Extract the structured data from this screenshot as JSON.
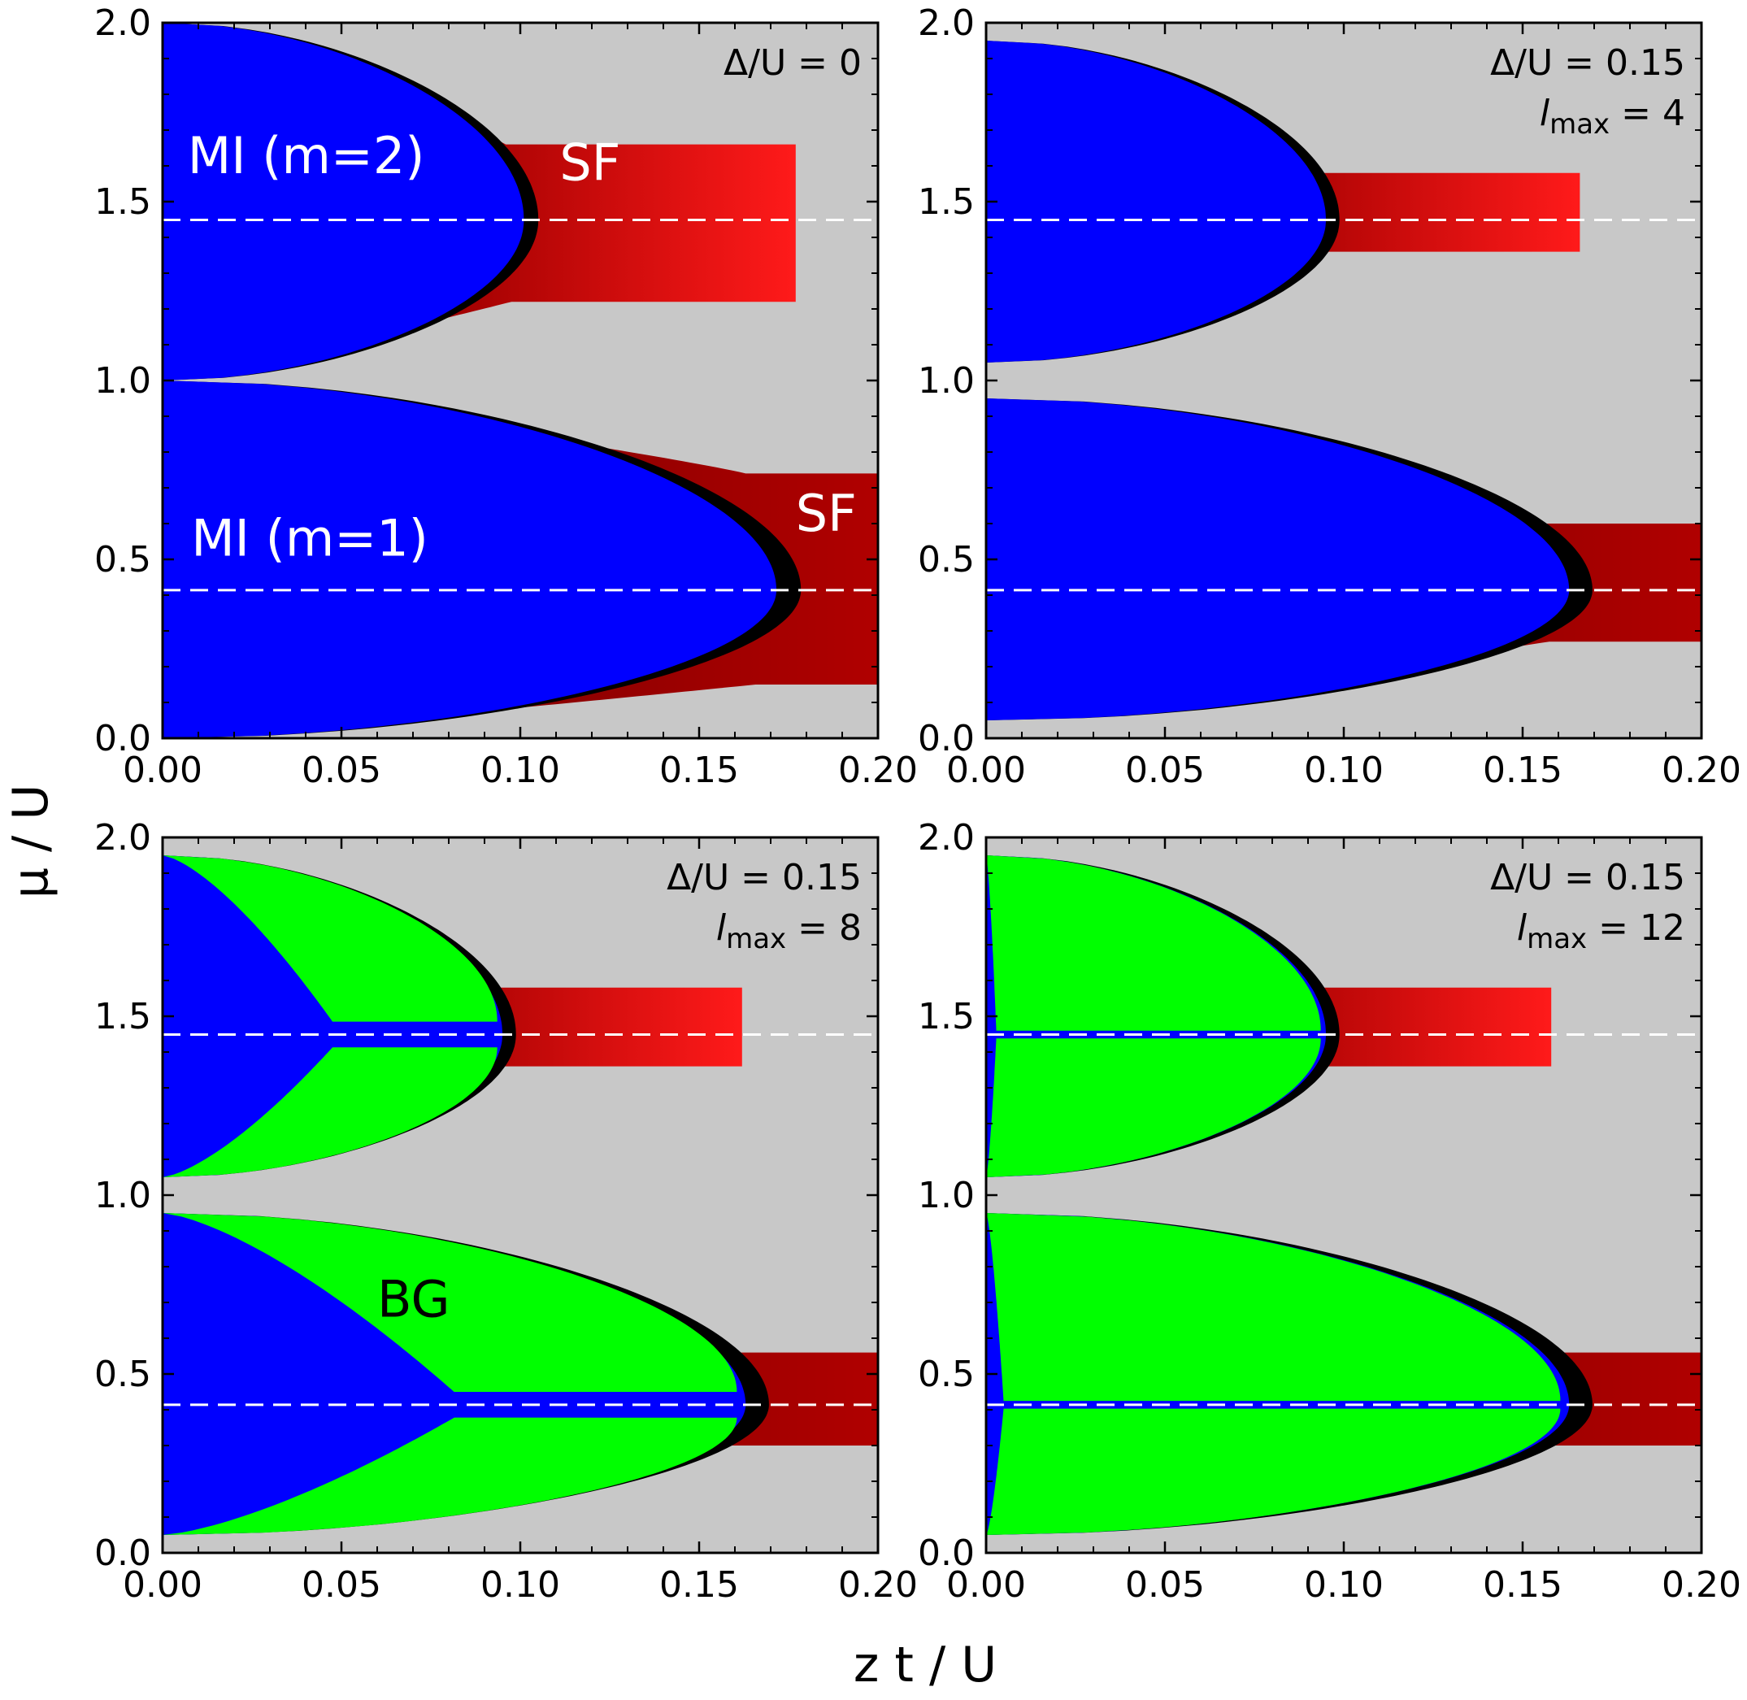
{
  "figure": {
    "xlabel": "z t / U",
    "ylabel": "μ / U",
    "colors": {
      "mott_insulator": "#0000ff",
      "bose_glass": "#00ff00",
      "superfluid_light": "#ff1a1a",
      "superfluid_dark": "#000000",
      "background": "#c8c8c8",
      "dashed_line": "#ffffff"
    }
  },
  "chart_data": [
    {
      "type": "heatmap",
      "panel": "top-left",
      "title": "",
      "annotation": {
        "delta": "Δ/U = 0",
        "lmax": ""
      },
      "xlim": [
        0,
        0.2
      ],
      "ylim": [
        0,
        2
      ],
      "xticks": [
        "0.00",
        "0.05",
        "0.10",
        "0.15",
        "0.20"
      ],
      "yticks": [
        "0.0",
        "0.5",
        "1.0",
        "1.5",
        "2.0"
      ],
      "dashed_lines_y": [
        0.414,
        1.449
      ],
      "lobes": [
        {
          "mu_bottom": 0.0,
          "mu_top": 1.0,
          "mu_tip": 0.414,
          "mi_tip_zt": 0.1716,
          "sf_tip_zt": 0.2,
          "sf_bottom": 0.15,
          "sf_top": 0.74,
          "bg_tip_zt": 0
        },
        {
          "mu_bottom": 1.0,
          "mu_top": 2.0,
          "mu_tip": 1.449,
          "mi_tip_zt": 0.101,
          "sf_tip_zt": 0.177,
          "sf_bottom": 1.22,
          "sf_top": 1.66,
          "bg_tip_zt": 0
        }
      ],
      "labels": [
        {
          "text": "MI (m=2)",
          "x": 0.007,
          "y": 1.58,
          "color": "#ffffff"
        },
        {
          "text": "SF",
          "x": 0.111,
          "y": 1.56,
          "color": "#ffffff"
        },
        {
          "text": "MI (m=1)",
          "x": 0.008,
          "y": 0.51,
          "color": "#ffffff"
        },
        {
          "text": "SF",
          "x": 0.177,
          "y": 0.58,
          "color": "#ffffff"
        }
      ]
    },
    {
      "type": "heatmap",
      "panel": "top-right",
      "title": "",
      "annotation": {
        "delta": "Δ/U = 0.15",
        "lmax": "4"
      },
      "xlim": [
        0,
        0.2
      ],
      "ylim": [
        0,
        2
      ],
      "xticks": [
        "0.00",
        "0.05",
        "0.10",
        "0.15",
        "0.20"
      ],
      "yticks": [
        "0.0",
        "0.5",
        "1.0",
        "1.5",
        "2.0"
      ],
      "dashed_lines_y": [
        0.414,
        1.449
      ],
      "lobes": [
        {
          "mu_bottom": 0.05,
          "mu_top": 0.95,
          "mu_tip": 0.414,
          "mi_tip_zt": 0.163,
          "sf_tip_zt": 0.2,
          "sf_bottom": 0.27,
          "sf_top": 0.6,
          "bg_tip_zt": 0
        },
        {
          "mu_bottom": 1.05,
          "mu_top": 1.95,
          "mu_tip": 1.449,
          "mi_tip_zt": 0.095,
          "sf_tip_zt": 0.166,
          "sf_bottom": 1.36,
          "sf_top": 1.58,
          "bg_tip_zt": 0
        }
      ],
      "labels": []
    },
    {
      "type": "heatmap",
      "panel": "bottom-left",
      "title": "",
      "annotation": {
        "delta": "Δ/U = 0.15",
        "lmax": "8"
      },
      "xlim": [
        0,
        0.2
      ],
      "ylim": [
        0,
        2
      ],
      "xticks": [
        "0.00",
        "0.05",
        "0.10",
        "0.15",
        "0.20"
      ],
      "yticks": [
        "0.0",
        "0.5",
        "1.0",
        "1.5",
        "2.0"
      ],
      "dashed_lines_y": [
        0.414,
        1.449
      ],
      "lobes": [
        {
          "mu_bottom": 0.05,
          "mu_top": 0.95,
          "mu_tip": 0.414,
          "mi_tip_zt": 0.163,
          "sf_tip_zt": 0.2,
          "sf_bottom": 0.3,
          "sf_top": 0.56,
          "bg_tip_zt": 0.155
        },
        {
          "mu_bottom": 1.05,
          "mu_top": 1.95,
          "mu_tip": 1.449,
          "mi_tip_zt": 0.095,
          "sf_tip_zt": 0.162,
          "sf_bottom": 1.36,
          "sf_top": 1.58,
          "bg_tip_zt": 0.09
        }
      ],
      "labels": [
        {
          "text": "BG",
          "x": 0.06,
          "y": 0.66,
          "color": "#000000"
        }
      ]
    },
    {
      "type": "heatmap",
      "panel": "bottom-right",
      "title": "",
      "annotation": {
        "delta": "Δ/U = 0.15",
        "lmax": "12"
      },
      "xlim": [
        0,
        0.2
      ],
      "ylim": [
        0,
        2
      ],
      "xticks": [
        "0.00",
        "0.05",
        "0.10",
        "0.15",
        "0.20"
      ],
      "yticks": [
        "0.0",
        "0.5",
        "1.0",
        "1.5",
        "2.0"
      ],
      "dashed_lines_y": [
        0.414,
        1.449
      ],
      "lobes": [
        {
          "mu_bottom": 0.05,
          "mu_top": 0.95,
          "mu_tip": 0.414,
          "mi_tip_zt": 0.163,
          "sf_tip_zt": 0.2,
          "sf_bottom": 0.3,
          "sf_top": 0.56,
          "bg_tip_zt": 0.16
        },
        {
          "mu_bottom": 1.05,
          "mu_top": 1.95,
          "mu_tip": 1.449,
          "mi_tip_zt": 0.095,
          "sf_tip_zt": 0.158,
          "sf_bottom": 1.36,
          "sf_top": 1.58,
          "bg_tip_zt": 0.092
        }
      ],
      "labels": []
    }
  ]
}
